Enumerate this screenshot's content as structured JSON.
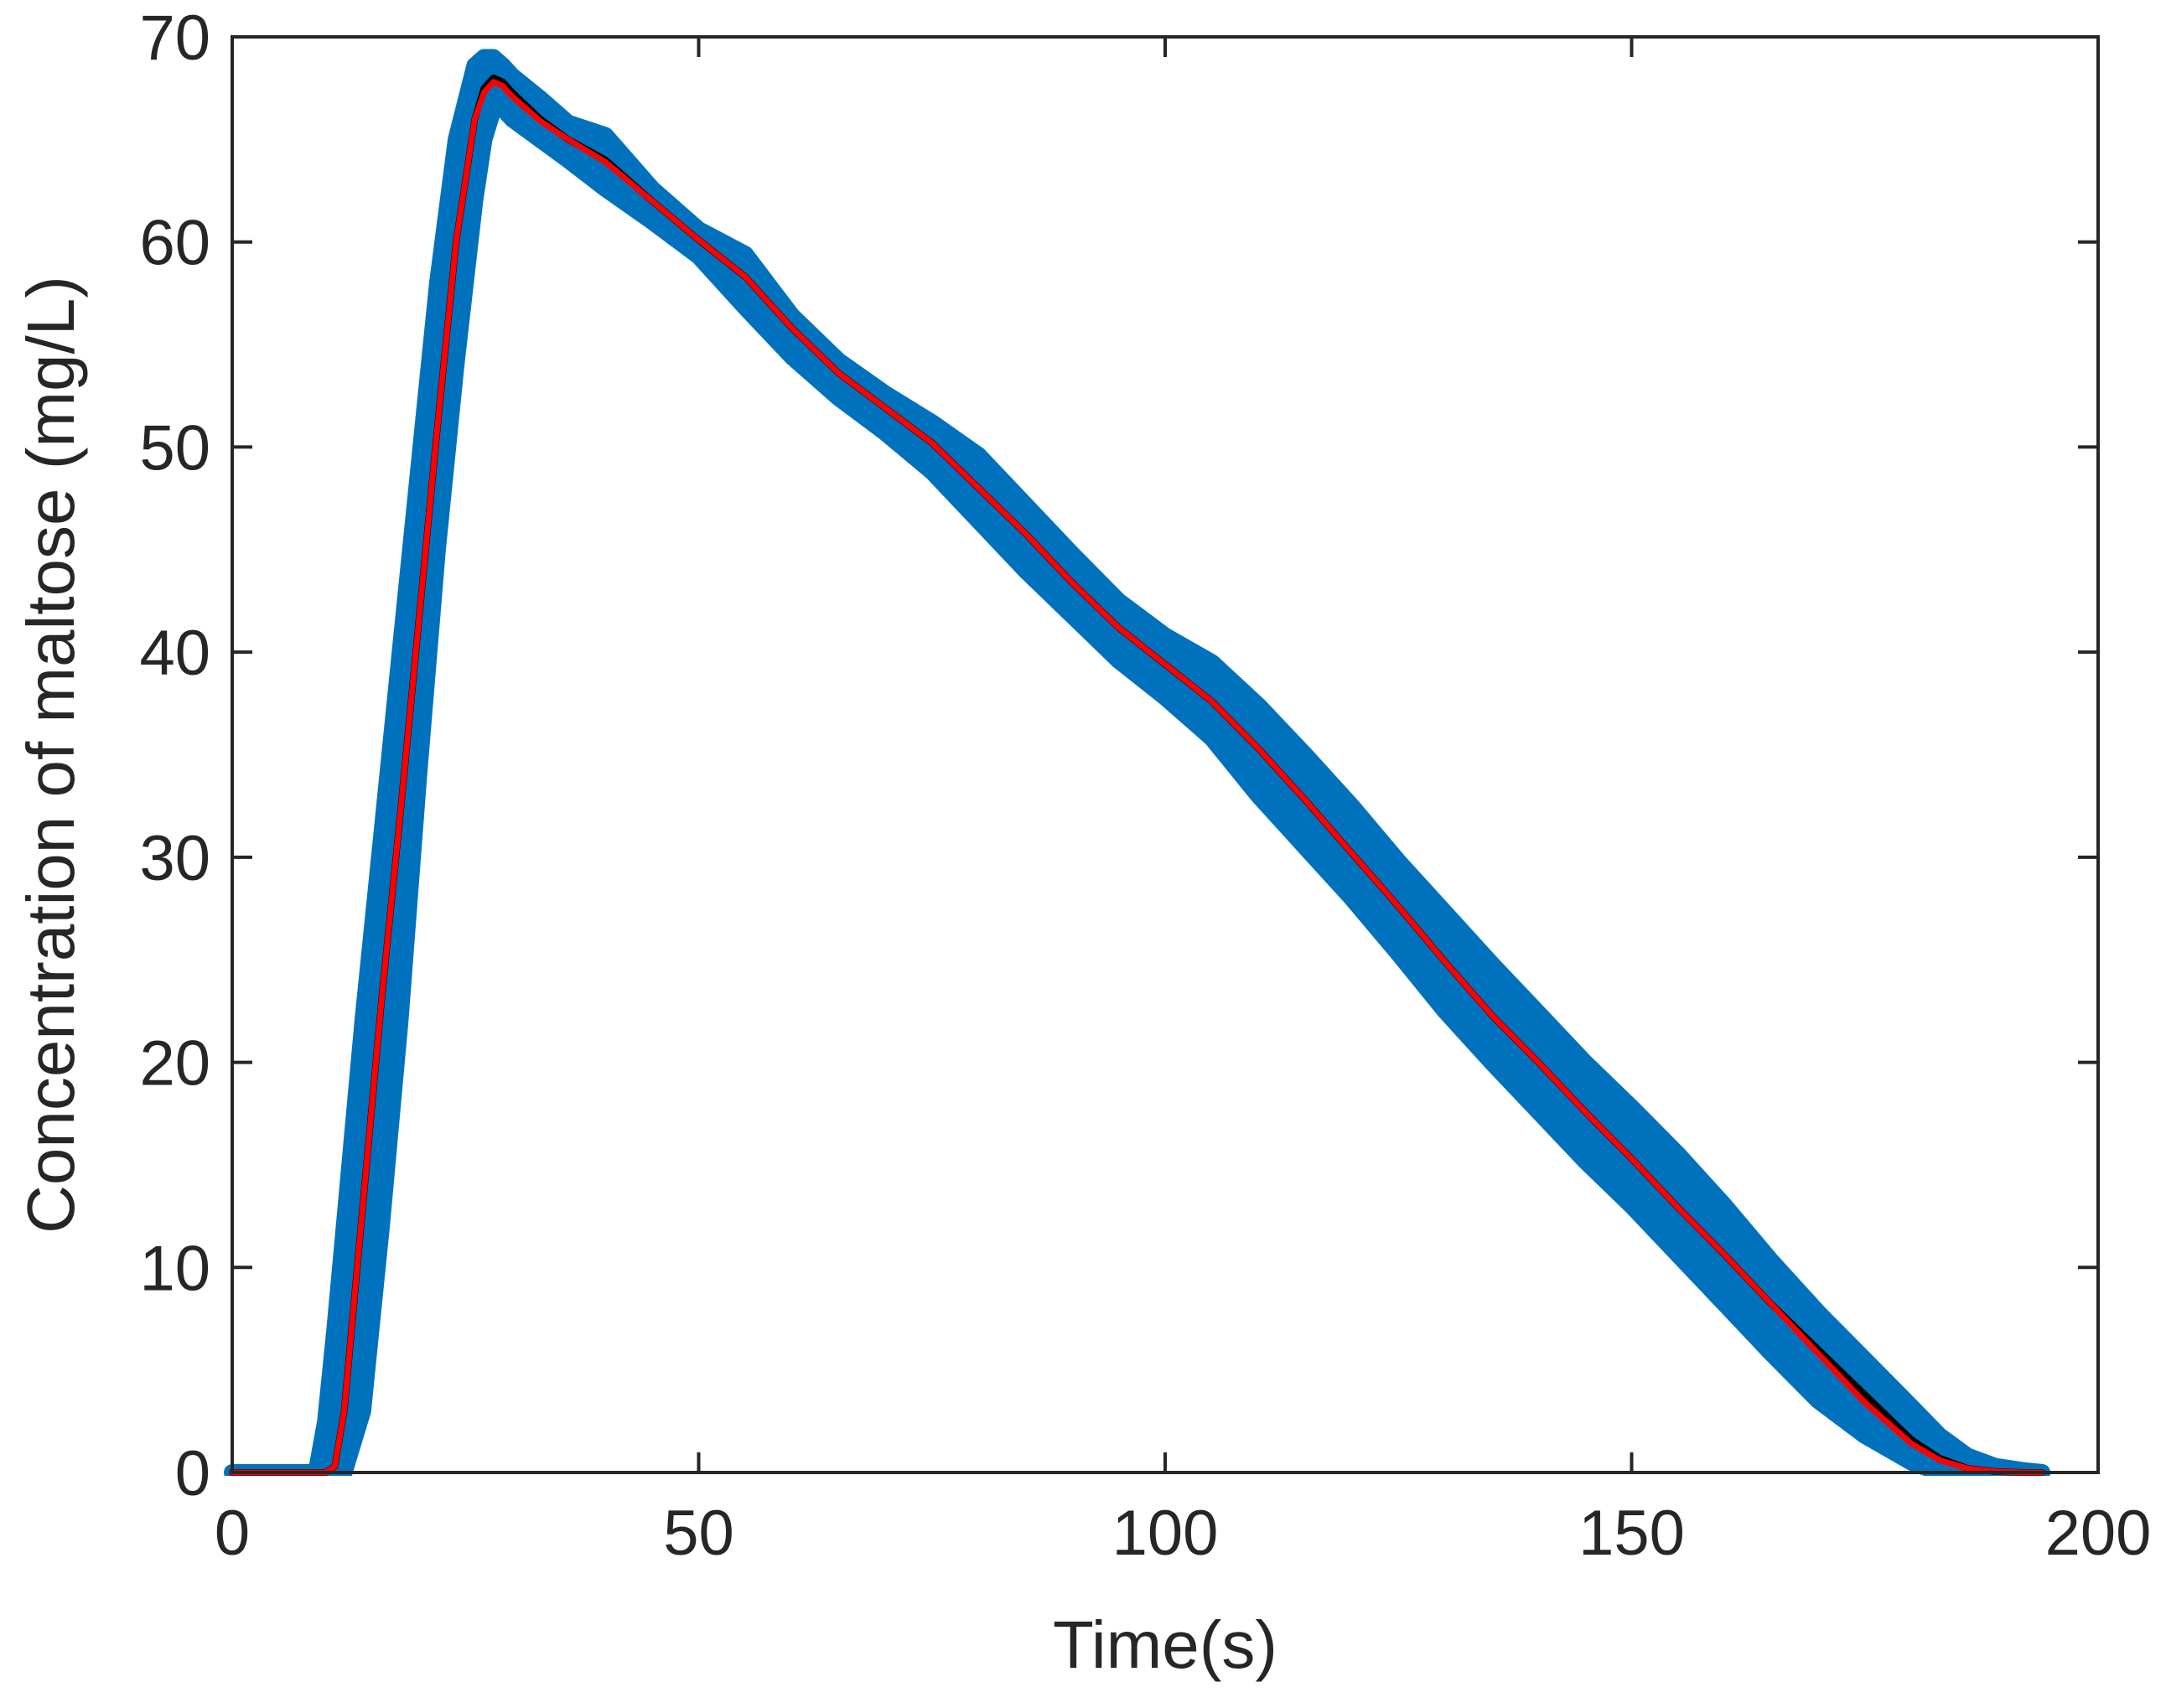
{
  "chart_data": {
    "type": "line",
    "xlabel": "Time(s)",
    "ylabel": "Concentration of maltose (mg/L)",
    "xlim": [
      0,
      200
    ],
    "ylim": [
      0,
      70
    ],
    "xticks": [
      "0",
      "50",
      "100",
      "150",
      "200"
    ],
    "yticks": [
      "0",
      "10",
      "20",
      "30",
      "40",
      "50",
      "60",
      "70"
    ],
    "grid": false,
    "legend": "none",
    "colors": {
      "band": "#0072BD",
      "black_line": "#000000",
      "red_line": "#FF0000",
      "axis": "#262626"
    },
    "series": [
      {
        "style": "band",
        "x": [
          0,
          9,
          10,
          11,
          12,
          14,
          16,
          18,
          20,
          22,
          24,
          26,
          27,
          28,
          29,
          30,
          33,
          36,
          40,
          45,
          50,
          55,
          60,
          65,
          70,
          75,
          80,
          85,
          90,
          95,
          100,
          105,
          110,
          115,
          120,
          125,
          130,
          135,
          140,
          145,
          150,
          155,
          160,
          165,
          170,
          175,
          180,
          183,
          186,
          189,
          192,
          194
        ],
        "upper": [
          0,
          0,
          2.5,
          7,
          12,
          22,
          31,
          40,
          49,
          58,
          65,
          68.6,
          69,
          69,
          68.6,
          68.1,
          67,
          65.8,
          65.2,
          62.6,
          60.6,
          59.4,
          56.4,
          54.2,
          52.6,
          51.2,
          49.6,
          47.2,
          44.8,
          42.5,
          40.8,
          39.5,
          37.4,
          35,
          32.5,
          29.8,
          27.3,
          24.8,
          22.4,
          20,
          17.8,
          15.5,
          13,
          10.3,
          7.8,
          5.5,
          3.2,
          1.8,
          0.8,
          0.3,
          0.1,
          0
        ],
        "lower": [
          0,
          0,
          0,
          0,
          0,
          3,
          12,
          22,
          34,
          45,
          54,
          62,
          65,
          66.5,
          66.5,
          66,
          65,
          64,
          62.6,
          61,
          59.3,
          56.8,
          54.4,
          52.4,
          50.7,
          48.8,
          46.4,
          44,
          41.8,
          39.6,
          37.8,
          35.8,
          33,
          30.5,
          28,
          25.3,
          22.5,
          20,
          17.6,
          15.2,
          13,
          10.6,
          8.2,
          5.8,
          3.5,
          1.8,
          0.5,
          0,
          0,
          0,
          0,
          0
        ]
      },
      {
        "style": "line",
        "color": "#000000",
        "x": [
          0,
          10,
          11,
          12,
          14,
          16,
          18,
          20,
          22,
          24,
          26,
          27,
          28,
          29,
          30,
          33,
          36,
          40,
          45,
          50,
          55,
          60,
          65,
          70,
          75,
          80,
          85,
          90,
          95,
          100,
          105,
          110,
          115,
          120,
          125,
          130,
          135,
          140,
          145,
          150,
          155,
          160,
          165,
          170,
          175,
          180,
          183,
          186,
          189,
          192,
          194
        ],
        "y": [
          0,
          0,
          0.3,
          3,
          13,
          23,
          32,
          41.5,
          51,
          60,
          66,
          67.5,
          68,
          67.8,
          67.3,
          66,
          65,
          64,
          62,
          60.1,
          58.3,
          55.8,
          53.6,
          51.9,
          50.2,
          48,
          45.8,
          43.4,
          41.2,
          39.4,
          37.6,
          35.3,
          32.8,
          30.2,
          27.6,
          24.9,
          22.3,
          20,
          17.6,
          15.3,
          12.9,
          10.6,
          8.2,
          6,
          3.8,
          1.6,
          0.7,
          0.2,
          0.05,
          0,
          0
        ]
      },
      {
        "style": "line",
        "color": "#FF0000",
        "x": [
          0,
          10,
          11,
          12,
          14,
          16,
          18,
          20,
          22,
          24,
          26,
          27,
          28,
          29,
          30,
          33,
          36,
          40,
          45,
          50,
          55,
          60,
          65,
          70,
          75,
          80,
          85,
          90,
          95,
          100,
          105,
          110,
          115,
          120,
          125,
          130,
          135,
          140,
          145,
          150,
          155,
          160,
          165,
          170,
          175,
          180,
          183,
          186,
          189,
          192,
          194
        ],
        "y": [
          0,
          0,
          0.3,
          3,
          13,
          23,
          32,
          41.5,
          51,
          60,
          66,
          67.3,
          67.8,
          67.6,
          67.1,
          65.9,
          65,
          63.9,
          62,
          60.1,
          58.3,
          55.8,
          53.6,
          51.9,
          50.2,
          48,
          45.8,
          43.4,
          41.2,
          39.4,
          37.6,
          35.3,
          32.8,
          30.2,
          27.6,
          24.9,
          22.3,
          20,
          17.6,
          15.3,
          12.9,
          10.6,
          8.2,
          5.8,
          3.4,
          1.4,
          0.6,
          0.2,
          0.05,
          0,
          0
        ]
      }
    ]
  }
}
